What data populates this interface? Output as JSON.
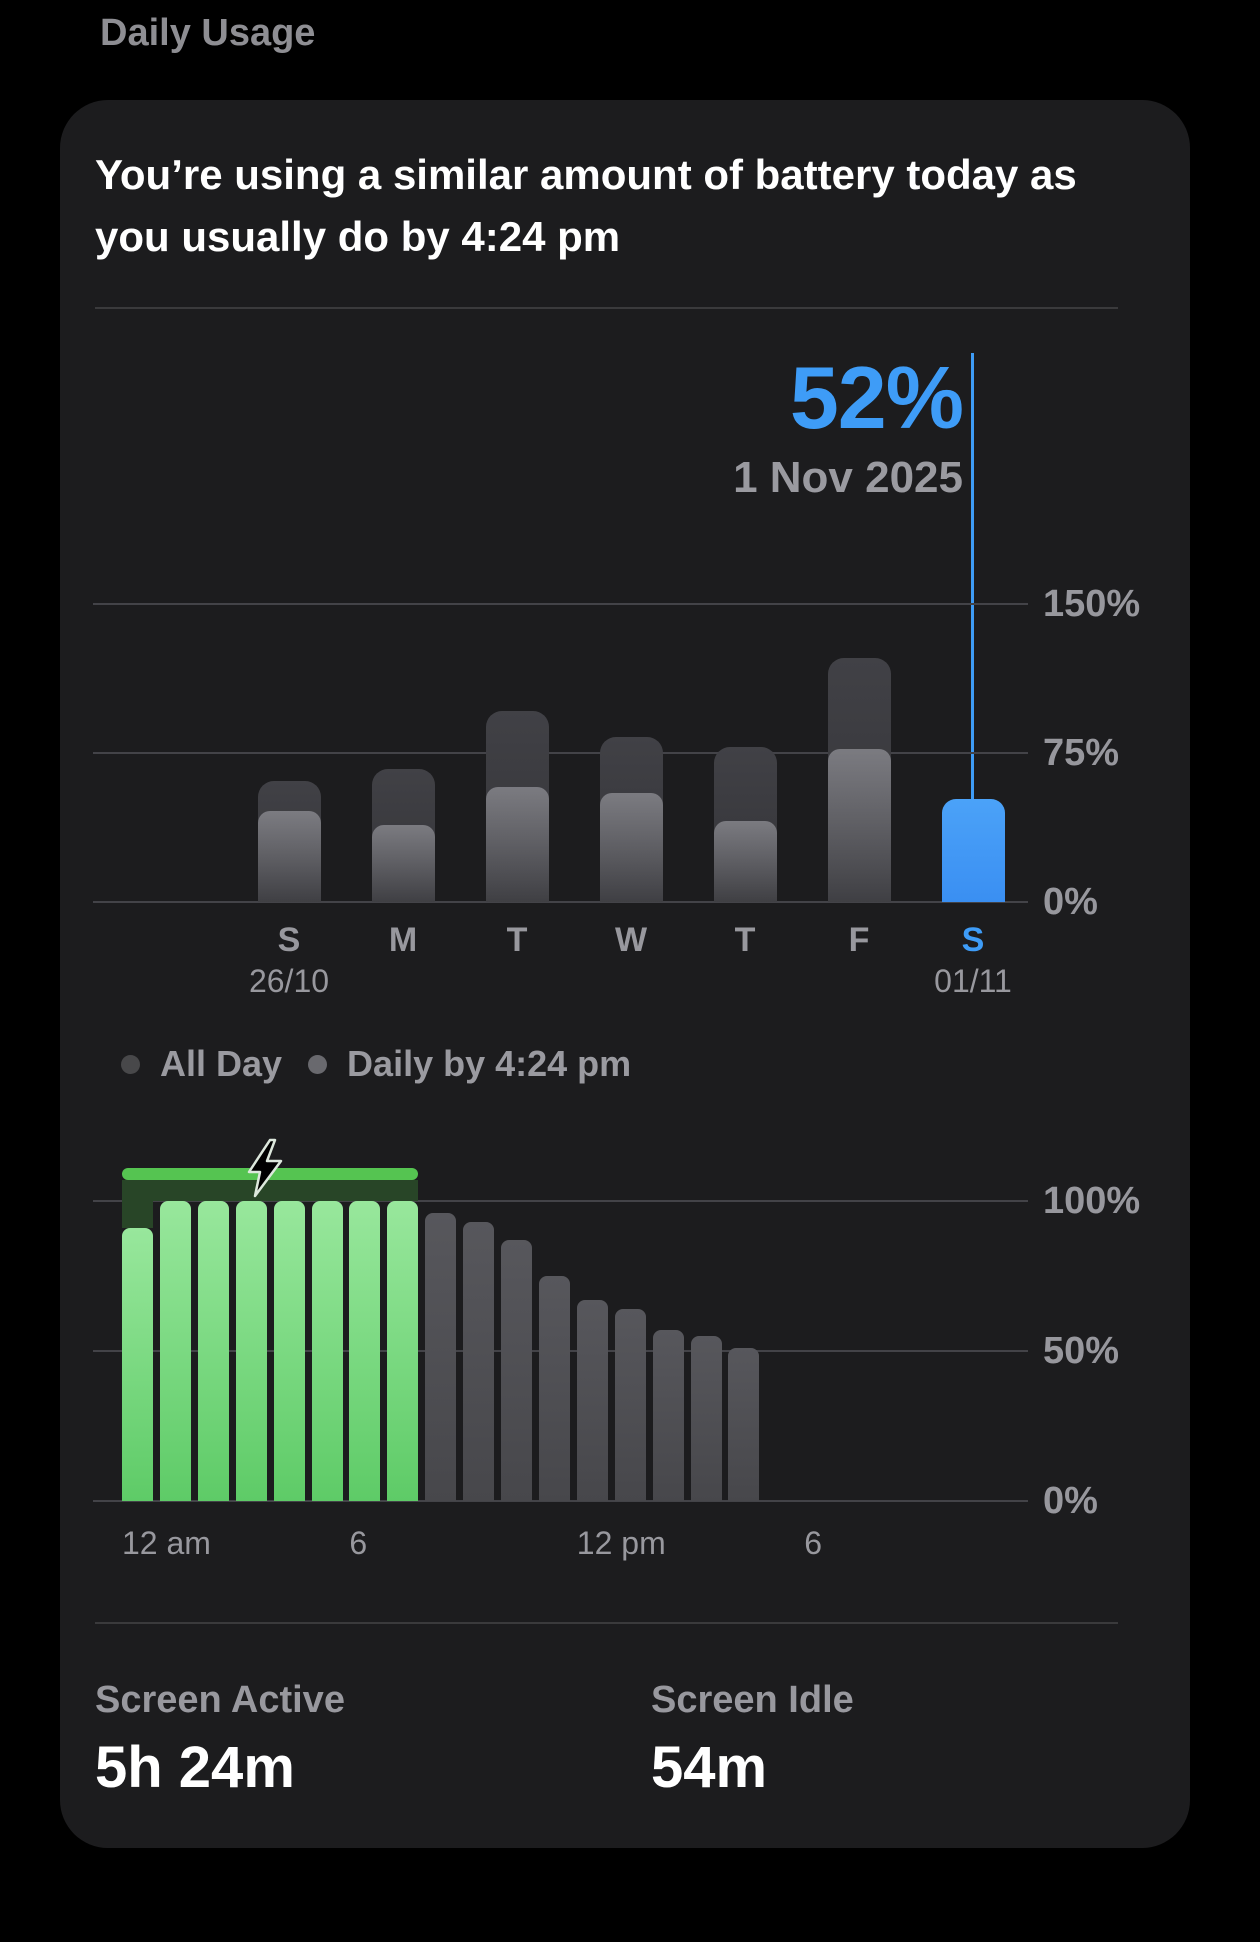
{
  "page": {
    "title": "Daily Usage"
  },
  "card": {
    "headline": "You’re using a similar amount of battery today as you usually do by 4:24 pm",
    "callout": {
      "value": "52%",
      "date": "1 Nov 2025"
    },
    "legend": [
      {
        "label": "All Day",
        "dot_color": "#48484A"
      },
      {
        "label": "Daily by 4:24 pm",
        "dot_color": "#69696E"
      }
    ],
    "stats": [
      {
        "label": "Screen Active",
        "value": "5h 24m"
      },
      {
        "label": "Screen Idle",
        "value": "54m"
      }
    ]
  },
  "colors": {
    "background": "#000000",
    "card": "#1C1C1E",
    "accent_blue": "#3E9CF7",
    "bar_gray": "#3A3A3E",
    "bar_overlay_gray": "#8E8E93",
    "charge_green": "#55C451",
    "charge_green_dark": "#284527",
    "text_primary": "#FFFFFF",
    "text_secondary": "#98989E",
    "gridline": "#434348"
  },
  "chart_data": [
    {
      "type": "bar",
      "title": "Weekly battery usage per day (%)",
      "categories": [
        "S",
        "M",
        "T",
        "W",
        "T",
        "F",
        "S"
      ],
      "category_dates": {
        "first": "26/10",
        "last": "01/11"
      },
      "series": [
        {
          "name": "All Day",
          "values": [
            61,
            67,
            96,
            83,
            78,
            123,
            52
          ]
        },
        {
          "name": "Daily by 4:24 pm",
          "values": [
            46,
            39,
            58,
            55,
            41,
            77,
            null
          ]
        }
      ],
      "highlight_index": 6,
      "highlight_value_label": "52%",
      "highlight_date_label": "1 Nov 2025",
      "yticks": [
        {
          "label": "150%",
          "value": 150
        },
        {
          "label": "75%",
          "value": 75
        },
        {
          "label": "0%",
          "value": 0
        }
      ],
      "ylim": [
        0,
        150
      ],
      "grid": true,
      "legend_position": "bottom"
    },
    {
      "type": "bar",
      "title": "Battery level by hour (%)",
      "x_start_hour": 0,
      "hours_total": 24,
      "values": [
        91,
        100,
        100,
        100,
        100,
        100,
        100,
        100,
        96,
        93,
        87,
        75,
        67,
        64,
        57,
        55,
        51
      ],
      "charging_hours_end": 8,
      "xticks": [
        {
          "label": "12 am",
          "hour": 0
        },
        {
          "label": "6",
          "hour": 6
        },
        {
          "label": "12 pm",
          "hour": 12
        },
        {
          "label": "6",
          "hour": 18
        }
      ],
      "yticks": [
        {
          "label": "100%",
          "value": 100
        },
        {
          "label": "50%",
          "value": 50
        },
        {
          "label": "0%",
          "value": 0
        }
      ],
      "ylim": [
        0,
        100
      ],
      "grid": true
    }
  ]
}
